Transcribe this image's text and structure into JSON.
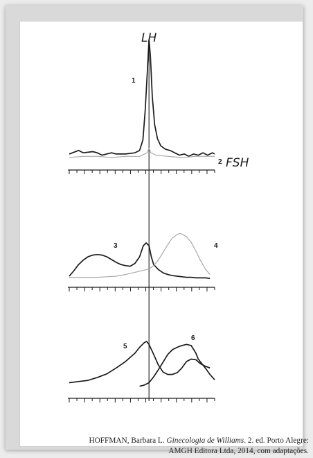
{
  "colors": {
    "dark": "#1a1a1a",
    "light": "#a9a9a9",
    "paper": "#ffffff"
  },
  "chart_data": [
    {
      "type": "line",
      "title": "",
      "annotations": [
        "LH",
        "FSH"
      ],
      "series": [
        {
          "name": "1",
          "style": "dark",
          "values": [
            [
              0,
              3
            ],
            [
              2,
              6
            ],
            [
              3,
              4
            ],
            [
              5,
              5
            ],
            [
              6,
              4
            ],
            [
              7,
              2
            ],
            [
              9,
              4
            ],
            [
              10,
              3
            ],
            [
              12,
              3
            ],
            [
              14,
              4
            ],
            [
              15,
              6
            ],
            [
              15.7,
              15
            ],
            [
              16.2,
              40
            ],
            [
              16.6,
              70
            ],
            [
              17,
              100
            ],
            [
              17.3,
              86
            ],
            [
              17.7,
              52
            ],
            [
              18.2,
              28
            ],
            [
              18.8,
              16
            ],
            [
              19.5,
              10
            ],
            [
              20.5,
              7
            ],
            [
              21.5,
              6
            ],
            [
              22.5,
              4
            ],
            [
              23.5,
              2
            ],
            [
              24.5,
              3
            ],
            [
              25.5,
              1
            ],
            [
              26.5,
              3
            ],
            [
              27.5,
              2
            ],
            [
              28.5,
              4
            ],
            [
              29.5,
              2
            ],
            [
              30.5,
              4
            ],
            [
              31,
              3
            ]
          ]
        },
        {
          "name": "2",
          "style": "light",
          "values": [
            [
              0,
              0
            ],
            [
              3,
              1
            ],
            [
              6,
              1
            ],
            [
              9,
              0
            ],
            [
              12,
              1
            ],
            [
              15,
              1
            ],
            [
              16.6,
              4
            ],
            [
              17,
              8
            ],
            [
              17.4,
              4
            ],
            [
              18.5,
              2
            ],
            [
              21,
              1
            ],
            [
              24,
              0
            ],
            [
              27,
              1
            ],
            [
              31,
              1
            ]
          ]
        }
      ]
    },
    {
      "type": "line",
      "title": "",
      "series": [
        {
          "name": "3",
          "style": "dark",
          "values": [
            [
              0,
              5
            ],
            [
              1,
              15
            ],
            [
              2,
              26
            ],
            [
              3,
              34
            ],
            [
              4,
              40
            ],
            [
              5,
              43
            ],
            [
              6,
              44
            ],
            [
              7,
              43
            ],
            [
              8,
              40
            ],
            [
              9,
              35
            ],
            [
              10,
              30
            ],
            [
              11,
              26
            ],
            [
              12,
              24
            ],
            [
              13,
              23
            ],
            [
              14,
              28
            ],
            [
              15,
              40
            ],
            [
              15.8,
              60
            ],
            [
              16.4,
              65
            ],
            [
              17,
              60
            ],
            [
              17.5,
              40
            ],
            [
              18,
              26
            ],
            [
              19,
              17
            ],
            [
              20,
              11
            ],
            [
              21,
              8
            ],
            [
              22,
              6
            ],
            [
              23,
              5
            ],
            [
              24,
              4
            ],
            [
              25,
              3
            ],
            [
              26,
              3
            ],
            [
              27,
              2
            ],
            [
              28,
              2
            ],
            [
              29,
              2
            ],
            [
              30,
              1
            ]
          ]
        },
        {
          "name": "4",
          "style": "light",
          "values": [
            [
              0,
              3
            ],
            [
              2,
              3
            ],
            [
              4,
              3
            ],
            [
              6,
              3
            ],
            [
              8,
              4
            ],
            [
              10,
              5
            ],
            [
              12,
              8
            ],
            [
              14,
              12
            ],
            [
              15,
              14
            ],
            [
              16,
              16
            ],
            [
              17,
              18
            ],
            [
              18,
              24
            ],
            [
              19,
              34
            ],
            [
              20,
              48
            ],
            [
              21,
              62
            ],
            [
              22,
              74
            ],
            [
              23,
              80
            ],
            [
              23.5,
              82
            ],
            [
              24,
              81
            ],
            [
              25,
              76
            ],
            [
              26,
              66
            ],
            [
              27,
              50
            ],
            [
              28,
              33
            ],
            [
              29,
              18
            ],
            [
              30,
              8
            ]
          ]
        }
      ]
    },
    {
      "type": "line",
      "title": "",
      "series": [
        {
          "name": "5",
          "style": "dark",
          "values": [
            [
              0,
              10
            ],
            [
              2,
              12
            ],
            [
              4,
              14
            ],
            [
              6,
              19
            ],
            [
              8,
              25
            ],
            [
              10,
              35
            ],
            [
              12,
              46
            ],
            [
              14,
              60
            ],
            [
              15,
              70
            ],
            [
              16,
              78
            ],
            [
              16.5,
              80
            ],
            [
              17,
              75
            ],
            [
              18,
              58
            ],
            [
              19,
              40
            ],
            [
              20,
              28
            ],
            [
              21,
              24
            ],
            [
              22,
              24
            ],
            [
              23,
              27
            ],
            [
              24,
              35
            ],
            [
              25,
              46
            ],
            [
              26,
              50
            ],
            [
              27,
              49
            ],
            [
              28,
              42
            ],
            [
              29,
              38
            ],
            [
              30,
              35
            ]
          ]
        },
        {
          "name": "6",
          "style": "dark",
          "values": [
            [
              15,
              4
            ],
            [
              16,
              6
            ],
            [
              17,
              10
            ],
            [
              18,
              20
            ],
            [
              19,
              32
            ],
            [
              20,
              45
            ],
            [
              21,
              58
            ],
            [
              22,
              66
            ],
            [
              23,
              70
            ],
            [
              24,
              73
            ],
            [
              25,
              75
            ],
            [
              26,
              73
            ],
            [
              27,
              60
            ],
            [
              27.5,
              50
            ],
            [
              28,
              45
            ],
            [
              29,
              35
            ],
            [
              30,
              24
            ],
            [
              31,
              15
            ]
          ]
        }
      ]
    }
  ],
  "caption": {
    "author": "HOFFMAN, Barbara L.",
    "work": "Ginecologia de Williams",
    "rest_line1": ". 2. ed. Porto Alegre:",
    "line2": "AMGH Editora Ltda, 2014, com adaptações."
  }
}
